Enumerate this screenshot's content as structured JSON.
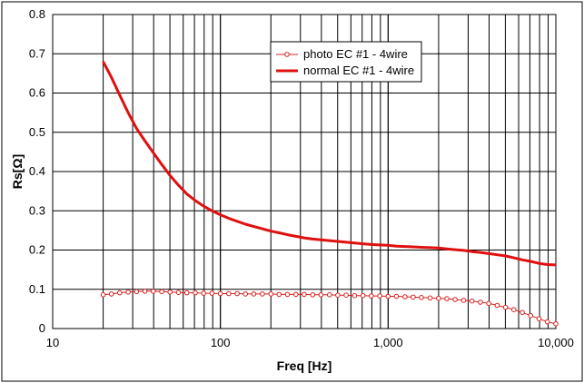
{
  "chart_data": {
    "type": "line",
    "xlabel": "Freq [Hz]",
    "ylabel": "Rs[Ω]",
    "x_scale": "log",
    "xlim": [
      10,
      10000
    ],
    "ylim": [
      0,
      0.8
    ],
    "x_ticks": [
      10,
      100,
      1000,
      10000
    ],
    "x_tick_labels": [
      "10",
      "100",
      "1,000",
      "10,000"
    ],
    "y_ticks": [
      0,
      0.1,
      0.2,
      0.3,
      0.4,
      0.5,
      0.6,
      0.7,
      0.8
    ],
    "y_tick_labels": [
      "0",
      "0.1",
      "0.2",
      "0.3",
      "0.4",
      "0.5",
      "0.6",
      "0.7",
      "0.8"
    ],
    "grid": "major and minor vertical, major horizontal",
    "legend": "top-center",
    "series": [
      {
        "name": "photo EC #1 - 4wire",
        "style": "thin line with hollow circle markers",
        "color": "#d62020",
        "points": [
          [
            20,
            0.086
          ],
          [
            22.4,
            0.088
          ],
          [
            25.1,
            0.091
          ],
          [
            28.2,
            0.093
          ],
          [
            31.6,
            0.094
          ],
          [
            35.5,
            0.095
          ],
          [
            39.8,
            0.095
          ],
          [
            44.7,
            0.094
          ],
          [
            50.1,
            0.093
          ],
          [
            56.2,
            0.092
          ],
          [
            63.1,
            0.091
          ],
          [
            70.8,
            0.091
          ],
          [
            79.4,
            0.09
          ],
          [
            89.1,
            0.09
          ],
          [
            100,
            0.089
          ],
          [
            112,
            0.089
          ],
          [
            126,
            0.089
          ],
          [
            141,
            0.088
          ],
          [
            158,
            0.088
          ],
          [
            178,
            0.088
          ],
          [
            200,
            0.088
          ],
          [
            224,
            0.087
          ],
          [
            251,
            0.087
          ],
          [
            282,
            0.087
          ],
          [
            316,
            0.087
          ],
          [
            355,
            0.086
          ],
          [
            398,
            0.086
          ],
          [
            447,
            0.086
          ],
          [
            501,
            0.085
          ],
          [
            562,
            0.085
          ],
          [
            631,
            0.084
          ],
          [
            708,
            0.084
          ],
          [
            794,
            0.083
          ],
          [
            891,
            0.083
          ],
          [
            1000,
            0.082
          ],
          [
            1120,
            0.082
          ],
          [
            1260,
            0.081
          ],
          [
            1410,
            0.08
          ],
          [
            1580,
            0.079
          ],
          [
            1780,
            0.078
          ],
          [
            2000,
            0.077
          ],
          [
            2240,
            0.076
          ],
          [
            2510,
            0.074
          ],
          [
            2820,
            0.072
          ],
          [
            3160,
            0.07
          ],
          [
            3550,
            0.067
          ],
          [
            3980,
            0.064
          ],
          [
            4470,
            0.059
          ],
          [
            5010,
            0.054
          ],
          [
            5620,
            0.048
          ],
          [
            6310,
            0.041
          ],
          [
            7080,
            0.033
          ],
          [
            7940,
            0.025
          ],
          [
            8910,
            0.017
          ],
          [
            10000,
            0.012
          ]
        ]
      },
      {
        "name": "normal EC #1 - 4wire",
        "style": "thick solid line",
        "color": "#e01010",
        "points": [
          [
            20,
            0.68
          ],
          [
            22.4,
            0.64
          ],
          [
            25.1,
            0.595
          ],
          [
            28.2,
            0.55
          ],
          [
            31.6,
            0.51
          ],
          [
            35.5,
            0.478
          ],
          [
            39.8,
            0.448
          ],
          [
            44.7,
            0.418
          ],
          [
            50.1,
            0.39
          ],
          [
            56.2,
            0.365
          ],
          [
            63.1,
            0.343
          ],
          [
            70.8,
            0.326
          ],
          [
            79.4,
            0.312
          ],
          [
            89.1,
            0.3
          ],
          [
            100,
            0.29
          ],
          [
            112,
            0.281
          ],
          [
            126,
            0.273
          ],
          [
            141,
            0.266
          ],
          [
            158,
            0.26
          ],
          [
            178,
            0.254
          ],
          [
            200,
            0.248
          ],
          [
            224,
            0.244
          ],
          [
            251,
            0.239
          ],
          [
            282,
            0.235
          ],
          [
            316,
            0.231
          ],
          [
            355,
            0.228
          ],
          [
            398,
            0.226
          ],
          [
            447,
            0.224
          ],
          [
            501,
            0.222
          ],
          [
            562,
            0.22
          ],
          [
            631,
            0.218
          ],
          [
            708,
            0.216
          ],
          [
            794,
            0.214
          ],
          [
            891,
            0.213
          ],
          [
            1000,
            0.212
          ],
          [
            1120,
            0.21
          ],
          [
            1260,
            0.209
          ],
          [
            1410,
            0.208
          ],
          [
            1580,
            0.207
          ],
          [
            1780,
            0.206
          ],
          [
            2000,
            0.205
          ],
          [
            2240,
            0.203
          ],
          [
            2510,
            0.201
          ],
          [
            2820,
            0.199
          ],
          [
            3160,
            0.196
          ],
          [
            3550,
            0.194
          ],
          [
            3980,
            0.191
          ],
          [
            4470,
            0.188
          ],
          [
            5010,
            0.185
          ],
          [
            5620,
            0.18
          ],
          [
            6310,
            0.175
          ],
          [
            7080,
            0.171
          ],
          [
            7940,
            0.166
          ],
          [
            8910,
            0.163
          ],
          [
            10000,
            0.162
          ]
        ]
      }
    ]
  }
}
